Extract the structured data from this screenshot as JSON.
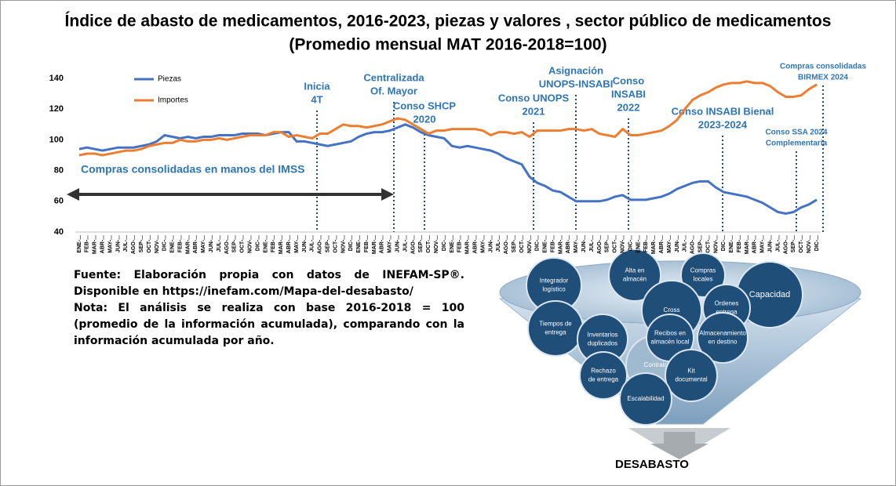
{
  "chart_data": {
    "type": "line",
    "title": "Índice de abasto de medicamentos, 2016-2023, piezas y valores , sector público de medicamentos",
    "subtitle": "(Promedio mensual MAT 2016-2018=100)",
    "categories": [
      "ENE-...",
      "FEB-...",
      "MAR-...",
      "ABR-...",
      "MAY-...",
      "JUN-...",
      "JUL-...",
      "AGO-...",
      "SEP-...",
      "OCT-...",
      "NOV-...",
      "DIC-...",
      "ENE-...",
      "FEB-...",
      "MAR-...",
      "ABR-...",
      "MAY-...",
      "JUN-...",
      "JUL-...",
      "AGO-...",
      "SEP-...",
      "OCT-...",
      "NOV-...",
      "DIC-...",
      "ENE-...",
      "FEB-...",
      "MAR-...",
      "ABR-...",
      "MAY-...",
      "JUN-...",
      "JUL-...",
      "AGO-...",
      "SEP-...",
      "OCT-...",
      "NOV-...",
      "DIC-...",
      "ENE-...",
      "FEB-...",
      "MAR-...",
      "ABR-...",
      "MAY-...",
      "JUN-...",
      "JUL-...",
      "AGO-...",
      "SEP-...",
      "OCT-...",
      "NOV-...",
      "DIC-...",
      "ENE-...",
      "FEB-...",
      "MAR-...",
      "ABR-...",
      "MAY-...",
      "JUN-...",
      "JUL-...",
      "AGO-...",
      "SEP-...",
      "OCT-...",
      "NOV-...",
      "DIC-...",
      "ENE-...",
      "FEB-...",
      "MAR-...",
      "ABR-...",
      "MAY-...",
      "JUN-...",
      "JUL-...",
      "AGO-...",
      "SEP-...",
      "OCT-...",
      "NOV-...",
      "DIC-...",
      "ENE-...",
      "FEB-...",
      "MAR-...",
      "ABR-...",
      "MAY-...",
      "JUN-...",
      "JUL-...",
      "AGO-...",
      "SEP-...",
      "OCT-...",
      "NOV-...",
      "DIC-...",
      "ENE-...",
      "FEB-...",
      "MAR-...",
      "ABR-...",
      "MAY-...",
      "JUN-...",
      "JUL-...",
      "AGO-...",
      "SEP-...",
      "OCT-...",
      "NOV-...",
      "DIC-..."
    ],
    "series": [
      {
        "name": "Piezas",
        "color": "#4472c4",
        "values": [
          94,
          95,
          94,
          93,
          94,
          95,
          95,
          95,
          96,
          97,
          99,
          103,
          102,
          101,
          102,
          101,
          102,
          102,
          103,
          103,
          103,
          104,
          104,
          104,
          103,
          104,
          105,
          105,
          99,
          99,
          98,
          97,
          96,
          97,
          98,
          99,
          102,
          104,
          105,
          105,
          106,
          108,
          110,
          108,
          105,
          103,
          102,
          101,
          96,
          95,
          96,
          95,
          94,
          93,
          91,
          88,
          86,
          84,
          76,
          72,
          70,
          67,
          66,
          63,
          60,
          60,
          60,
          60,
          61,
          63,
          64,
          61,
          61,
          61,
          62,
          63,
          65,
          68,
          70,
          72,
          73,
          73,
          69,
          66,
          65,
          64,
          63,
          61,
          59,
          56,
          53,
          52,
          53,
          56,
          58,
          61
        ]
      },
      {
        "name": "Importes",
        "color": "#ed7d31",
        "values": [
          90,
          91,
          91,
          90,
          91,
          92,
          93,
          93,
          94,
          96,
          97,
          98,
          98,
          100,
          99,
          99,
          100,
          100,
          101,
          100,
          101,
          102,
          103,
          103,
          103,
          105,
          105,
          102,
          103,
          102,
          101,
          104,
          104,
          107,
          110,
          109,
          109,
          108,
          109,
          110,
          112,
          114,
          113,
          110,
          107,
          104,
          106,
          106,
          107,
          107,
          107,
          107,
          106,
          103,
          105,
          105,
          104,
          105,
          102,
          106,
          106,
          106,
          106,
          107,
          107,
          106,
          107,
          104,
          103,
          102,
          107,
          103,
          103,
          104,
          105,
          106,
          109,
          113,
          120,
          126,
          129,
          131,
          134,
          136,
          137,
          137,
          138,
          137,
          137,
          135,
          131,
          128,
          128,
          129,
          133,
          136
        ]
      }
    ],
    "ylim": [
      40,
      140
    ],
    "yticks": [
      40,
      60,
      80,
      100,
      120,
      140
    ],
    "grid": false,
    "legend": "top-left",
    "annotations": [
      [
        "Inicia",
        "4T"
      ],
      [
        "Centralizada",
        "Of. Mayor"
      ],
      [
        "Conso SHCP",
        "2020"
      ],
      [
        "Conso UNOPS",
        "2021"
      ],
      [
        "Asignación",
        "UNOPS-INSABI"
      ],
      [
        "Conso",
        "INSABI",
        "2022"
      ],
      [
        "Conso INSABI Bienal",
        "2023-2024"
      ],
      [
        "Conso SSA 2024",
        "Complementaria"
      ],
      [
        "Compras consolidadas",
        "BIRMEX 2024"
      ]
    ],
    "arrow_label": "Compras consolidadas en manos del IMSS"
  },
  "note": [
    "Fuente: Elaboración propia con datos de INEFAM-SP®. Disponible en https://inefam.com/Mapa-del-desabasto/",
    "Nota: El análisis se realiza con base 2016-2018 = 100 (promedio de la información acumulada), comparando con la información acumulada por año."
  ],
  "funnel": {
    "bubbles": [
      [
        "Integrador",
        "logístico"
      ],
      [
        "Alta en",
        "almacén"
      ],
      [
        "Compras",
        "locales"
      ],
      [
        "Capacidad"
      ],
      [
        "Cross"
      ],
      [
        "Ordenes",
        "entrega"
      ],
      [
        "Tiempos de",
        "entrega"
      ],
      [
        "Inventarios",
        "duplicados"
      ],
      [
        "Recibos en",
        "almacén local"
      ],
      [
        "Almacenamiento",
        "en destino"
      ],
      [
        "Contrato"
      ],
      [
        "Rechazo",
        "de entrega"
      ],
      [
        "Kit",
        "documental"
      ],
      [
        "Escalabilidad"
      ]
    ],
    "output": "DESABASTO"
  }
}
